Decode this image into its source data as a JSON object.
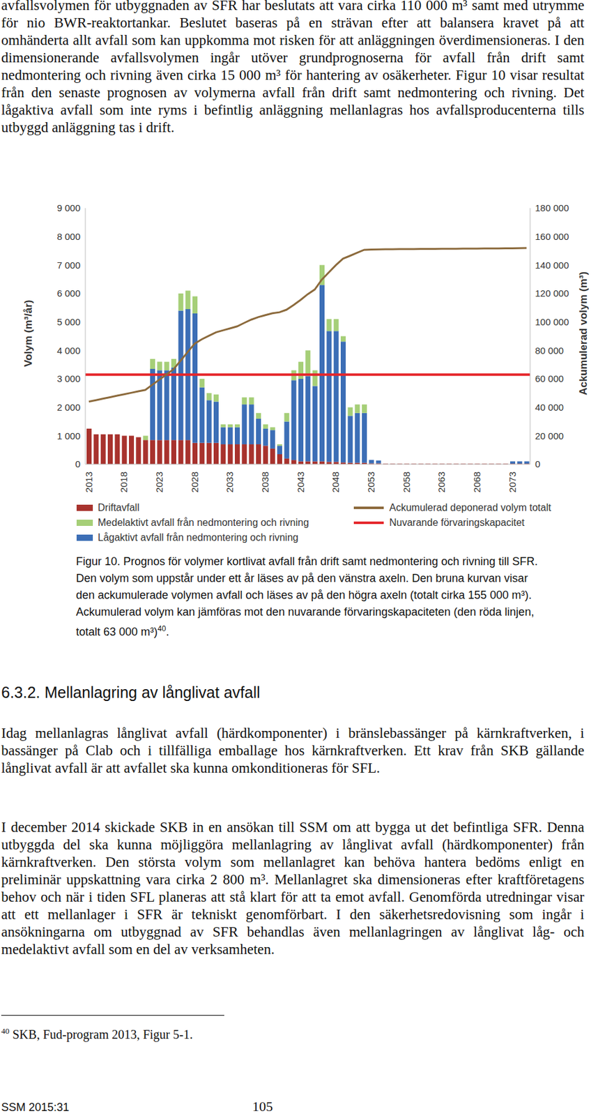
{
  "top_paragraph": "avfallsvolymen för utbyggnaden av SFR har beslutats att vara cirka 110 000 m³ samt med utrymme för nio BWR-reaktortankar. Beslutet baseras på en strävan efter att balansera kravet på att omhänderta allt avfall som kan uppkomma mot risken för att anläggningen överdimensioneras. I den dimensionerande avfallsvolymen ingår utöver grundprognoserna för avfall från drift samt nedmontering och rivning även cirka 15 000 m³ för hantering av osäkerheter. Figur 10 visar resultat från den senaste prognosen av volymerna avfall från drift samt nedmontering och rivning. Det lågaktiva avfall som inte ryms i befintlig anläggning mellanlagras hos avfallsproducenterna tills utbyggd anläggning tas i drift.",
  "chart_data": {
    "type": "bar",
    "stacked": true,
    "grid": false,
    "ylabel": "Volym (m³/år)",
    "y2label": "Ackumulerad volym (m³)",
    "categories": [
      "2013",
      null,
      null,
      null,
      null,
      "2018",
      null,
      null,
      null,
      null,
      "2023",
      null,
      null,
      null,
      null,
      "2028",
      null,
      null,
      null,
      null,
      "2033",
      null,
      null,
      null,
      null,
      "2038",
      null,
      null,
      null,
      null,
      "2043",
      null,
      null,
      null,
      null,
      "2048",
      null,
      null,
      null,
      null,
      "2053",
      null,
      null,
      null,
      null,
      "2058",
      null,
      null,
      null,
      null,
      "2063",
      null,
      null,
      null,
      null,
      "2068",
      null,
      null,
      null,
      null,
      "2073",
      null,
      null
    ],
    "ylim": [
      0,
      9000
    ],
    "yticks": [
      0,
      {
        "value": 1000,
        "label": "1 000"
      },
      {
        "value": 2000,
        "label": "2 000"
      },
      {
        "value": 3000,
        "label": "3 000"
      },
      {
        "value": 4000,
        "label": "4 000"
      },
      {
        "value": 5000,
        "label": "5 000"
      },
      {
        "value": 6000,
        "label": "6 000"
      },
      {
        "value": 7000,
        "label": "7 000"
      },
      {
        "value": 8000,
        "label": "8 000"
      },
      {
        "value": 9000,
        "label": "9 000"
      }
    ],
    "y2lim": [
      0,
      180000
    ],
    "y2ticks": [
      0,
      {
        "value": 20000,
        "label": "20 000"
      },
      {
        "value": 40000,
        "label": "40 000"
      },
      {
        "value": 60000,
        "label": "60 000"
      },
      {
        "value": 80000,
        "label": "80 000"
      },
      {
        "value": 100000,
        "label": "100 000"
      },
      {
        "value": 120000,
        "label": "120 000"
      },
      {
        "value": 140000,
        "label": "140 000"
      },
      {
        "value": 160000,
        "label": "160 000"
      },
      {
        "value": 180000,
        "label": "180 000"
      }
    ],
    "series": [
      {
        "name": "Driftavfall",
        "type": "bar",
        "color": "#a8322d",
        "values": [
          1250,
          1050,
          1050,
          1050,
          1050,
          1000,
          1000,
          950,
          850,
          850,
          850,
          850,
          850,
          850,
          850,
          750,
          750,
          750,
          750,
          700,
          700,
          700,
          700,
          700,
          700,
          650,
          550,
          350,
          200,
          150,
          100,
          100,
          100,
          100,
          80,
          80,
          60,
          50,
          50,
          50,
          30,
          30,
          20,
          20,
          20,
          20,
          20,
          20,
          20,
          20,
          20,
          20,
          20,
          20,
          20,
          20,
          20,
          20,
          20,
          20,
          20,
          20,
          20
        ]
      },
      {
        "name": "Lågaktivt avfall från nedmontering och rivning",
        "type": "bar",
        "color": "#3c6eb6",
        "values": [
          0,
          0,
          0,
          0,
          0,
          0,
          0,
          0,
          0,
          2500,
          2450,
          2450,
          2550,
          4550,
          4600,
          4550,
          1950,
          1500,
          1450,
          600,
          600,
          600,
          1400,
          1400,
          900,
          600,
          650,
          300,
          1300,
          2800,
          2900,
          3000,
          2650,
          6200,
          4600,
          4600,
          4250,
          1650,
          1750,
          1750,
          120,
          100,
          0,
          0,
          0,
          0,
          0,
          0,
          0,
          0,
          0,
          0,
          0,
          0,
          0,
          0,
          0,
          0,
          0,
          0,
          80,
          80,
          80
        ]
      },
      {
        "name": "Medelaktivt avfall från nedmontering och rivning",
        "type": "bar",
        "color": "#a6cf78",
        "values": [
          0,
          0,
          0,
          0,
          0,
          0,
          0,
          0,
          150,
          350,
          300,
          300,
          300,
          600,
          650,
          600,
          300,
          250,
          250,
          100,
          100,
          100,
          250,
          250,
          200,
          150,
          100,
          50,
          300,
          350,
          600,
          900,
          550,
          700,
          420,
          420,
          190,
          300,
          300,
          300,
          0,
          0,
          0,
          0,
          0,
          0,
          0,
          0,
          0,
          0,
          0,
          0,
          0,
          0,
          0,
          0,
          0,
          0,
          0,
          0,
          0,
          0,
          0
        ]
      },
      {
        "name": "Ackumulerad deponerad volym totalt",
        "type": "line",
        "axis": "y2",
        "color": "#8c6a3c",
        "values": [
          44000,
          45000,
          46100,
          47100,
          48200,
          49200,
          50200,
          51200,
          52200,
          55900,
          59500,
          63100,
          66800,
          72800,
          78900,
          84800,
          87800,
          90300,
          92700,
          94100,
          95500,
          96900,
          99300,
          101600,
          103400,
          104800,
          106100,
          106800,
          108600,
          111900,
          115500,
          119500,
          122800,
          129800,
          134900,
          140000,
          144500,
          146500,
          148600,
          150700,
          150900,
          151000,
          151100,
          151100,
          151200,
          151200,
          151200,
          151300,
          151300,
          151300,
          151400,
          151400,
          151400,
          151500,
          151500,
          151500,
          151600,
          151600,
          151600,
          151700,
          151800,
          151900,
          152000
        ]
      }
    ],
    "reference_line": {
      "name": "Nuvarande förvaringskapacitet",
      "color": "#e5262b",
      "axis": "y2",
      "value": 63000
    }
  },
  "caption": {
    "text": "Figur 10. Prognos för volymer kortlivat avfall från drift samt nedmontering och rivning till SFR. Den volym som uppstår under ett år läses av på den vänstra axeln. Den bruna kurvan visar den ackumulerade volymen avfall och läses av på den högra axeln (totalt cirka 155 000 m³). Ackumulerad volym kan jämföras mot den nuvarande förvaringskapaciteten (den röda linjen, totalt 63 000 m³)",
    "footnote_ref": "40",
    "text_after": "."
  },
  "heading": "6.3.2. Mellanlagring av långlivat avfall",
  "paragraphs": [
    "Idag mellanlagras långlivat avfall (härdkomponenter) i bränslebassänger på kärnkraftverken, i bassänger på Clab och i tillfälliga emballage hos kärnkraftverken. Ett krav från SKB gällande långlivat avfall är att avfallet ska kunna omkonditioneras för SFL.",
    "I december 2014 skickade SKB in en ansökan till SSM om att bygga ut det befintliga SFR. Denna utbyggda del ska kunna möjliggöra mellanlagring av långlivat avfall (härdkomponenter) från kärnkraftverken. Den största volym som mellanlagret kan behöva hantera bedöms enligt en preliminär uppskattning vara cirka 2 800 m³. Mellanlagret ska dimensioneras efter kraftföretagens behov och när i tiden SFL planeras att stå klart för att ta emot avfall. Genomförda utredningar visar att ett mellanlager i SFR är tekniskt genomförbart. I den säkerhetsredovisning som ingår i ansökningarna om utbyggnad av SFR behandlas även mellanlagringen av långlivat låg- och medelaktivt avfall som en del av verksamheten."
  ],
  "footnote": {
    "number": "40",
    "text": "SKB, Fud-program 2013, Figur 5-1."
  },
  "footer": {
    "left": "SSM 2015:31",
    "page": "105"
  }
}
